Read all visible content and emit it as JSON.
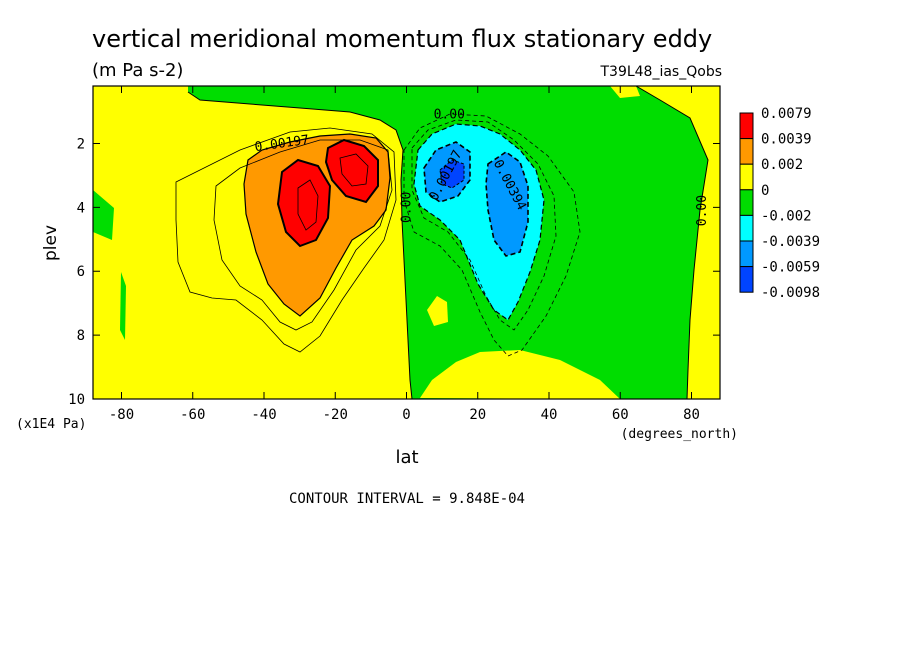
{
  "chart_data": {
    "type": "heatmap",
    "title": "vertical meridional momentum flux stationary eddy",
    "units": "(m Pa s-2)",
    "run_label": "T39L48_ias_Qobs",
    "xlabel": "lat",
    "x_units": "(degrees_north)",
    "ylabel": "plev",
    "y_units": "(x1E4 Pa)",
    "xlim": [
      -88,
      88
    ],
    "ylim": [
      10,
      0.2
    ],
    "x_ticks": [
      -80,
      -60,
      -40,
      -20,
      0,
      20,
      40,
      60,
      80
    ],
    "y_ticks": [
      2,
      4,
      6,
      8,
      10
    ],
    "footer": "CONTOUR INTERVAL = 9.848E-04",
    "legend": {
      "placement": "right",
      "levels": [
        "0.0079",
        "0.0039",
        "0.002",
        "0",
        "-0.002",
        "-0.0039",
        "-0.0059",
        "-0.0098"
      ],
      "colors": [
        "#ff0000",
        "#ff9900",
        "#ffff00",
        "#00dd00",
        "#00ffff",
        "#0099ff",
        "#0044ff"
      ]
    },
    "contour_labels": [
      {
        "text": "0.00197",
        "lat": -35,
        "plev": 2.0,
        "angle": -8
      },
      {
        "text": "0.00",
        "lat": 12,
        "plev": 1.1,
        "angle": 0
      },
      {
        "text": "0.00",
        "lat": 0,
        "plev": 4.0,
        "angle": -90
      },
      {
        "text": "0.00197",
        "lat": 11,
        "plev": 3.0,
        "angle": -62
      },
      {
        "text": "0.00394",
        "lat": 29,
        "plev": 3.3,
        "angle": 62
      },
      {
        "text": "0.00",
        "lat": 83,
        "plev": 4.1,
        "angle": -90
      }
    ],
    "regions": [
      {
        "sign": "positive",
        "level": "0.0039 to 0.0079",
        "center_lat": -30,
        "center_plev": 3.8
      },
      {
        "sign": "positive",
        "level": "0.0039 to 0.0079",
        "center_lat": -15,
        "center_plev": 3.0
      },
      {
        "sign": "negative",
        "level": "-0.0059 to -0.0098",
        "center_lat": 12,
        "center_plev": 3.0
      },
      {
        "sign": "negative",
        "level": "-0.0039 to -0.0059",
        "center_lat": 30,
        "center_plev": 4.0
      }
    ]
  }
}
